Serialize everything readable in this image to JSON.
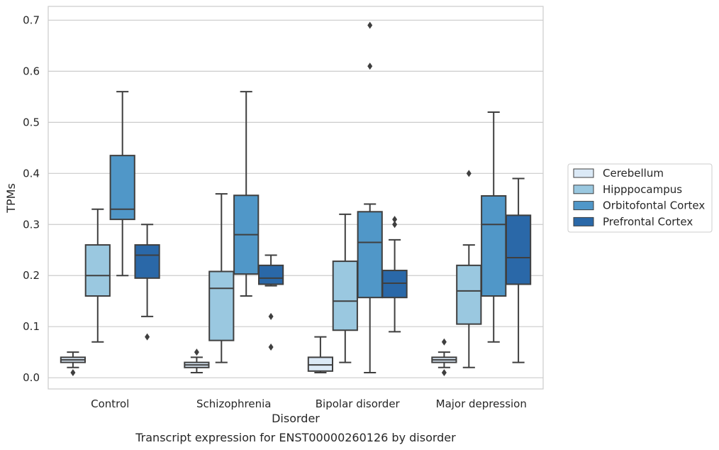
{
  "caption": "Transcript expression for ENST00000260126 by disorder",
  "chart_data": {
    "type": "box",
    "xlabel": "Disorder",
    "ylabel": "TPMs",
    "ylim": [
      -0.022,
      0.727
    ],
    "yticks": [
      "0.0",
      "0.1",
      "0.2",
      "0.3",
      "0.4",
      "0.5",
      "0.6",
      "0.7"
    ],
    "grid": "horizontal",
    "legend_position": "right",
    "categories": [
      "Control",
      "Schizophrenia",
      "Bipolar disorder",
      "Major depression"
    ],
    "series": [
      {
        "name": "Cerebellum",
        "color": "#dbe9f6",
        "boxes": [
          {
            "whislo": 0.02,
            "q1": 0.03,
            "med": 0.035,
            "q3": 0.04,
            "whishi": 0.05,
            "fliers": [
              0.01
            ]
          },
          {
            "whislo": 0.01,
            "q1": 0.02,
            "med": 0.025,
            "q3": 0.03,
            "whishi": 0.04,
            "fliers": [
              0.05
            ]
          },
          {
            "whislo": 0.01,
            "q1": 0.013,
            "med": 0.025,
            "q3": 0.04,
            "whishi": 0.08,
            "fliers": []
          },
          {
            "whislo": 0.02,
            "q1": 0.03,
            "med": 0.035,
            "q3": 0.04,
            "whishi": 0.05,
            "fliers": [
              0.01,
              0.07
            ]
          }
        ]
      },
      {
        "name": "Hipppocampus",
        "color": "#9ac8e0",
        "boxes": [
          {
            "whislo": 0.07,
            "q1": 0.16,
            "med": 0.2,
            "q3": 0.26,
            "whishi": 0.33,
            "fliers": []
          },
          {
            "whislo": 0.03,
            "q1": 0.073,
            "med": 0.175,
            "q3": 0.208,
            "whishi": 0.36,
            "fliers": []
          },
          {
            "whislo": 0.03,
            "q1": 0.093,
            "med": 0.15,
            "q3": 0.228,
            "whishi": 0.32,
            "fliers": []
          },
          {
            "whislo": 0.02,
            "q1": 0.105,
            "med": 0.17,
            "q3": 0.22,
            "whishi": 0.26,
            "fliers": [
              0.4
            ]
          }
        ]
      },
      {
        "name": "Orbitofontal Cortex",
        "color": "#5097c8",
        "boxes": [
          {
            "whislo": 0.2,
            "q1": 0.31,
            "med": 0.33,
            "q3": 0.435,
            "whishi": 0.56,
            "fliers": []
          },
          {
            "whislo": 0.16,
            "q1": 0.203,
            "med": 0.28,
            "q3": 0.357,
            "whishi": 0.56,
            "fliers": []
          },
          {
            "whislo": 0.01,
            "q1": 0.157,
            "med": 0.265,
            "q3": 0.325,
            "whishi": 0.34,
            "fliers": [
              0.61,
              0.69
            ]
          },
          {
            "whislo": 0.07,
            "q1": 0.16,
            "med": 0.3,
            "q3": 0.356,
            "whishi": 0.52,
            "fliers": []
          }
        ]
      },
      {
        "name": "Prefrontal Cortex",
        "color": "#2a68a8",
        "boxes": [
          {
            "whislo": 0.12,
            "q1": 0.195,
            "med": 0.24,
            "q3": 0.26,
            "whishi": 0.3,
            "fliers": [
              0.08
            ]
          },
          {
            "whislo": 0.18,
            "q1": 0.183,
            "med": 0.195,
            "q3": 0.22,
            "whishi": 0.24,
            "fliers": [
              0.06,
              0.12
            ]
          },
          {
            "whislo": 0.09,
            "q1": 0.157,
            "med": 0.185,
            "q3": 0.21,
            "whishi": 0.27,
            "fliers": [
              0.3,
              0.31
            ]
          },
          {
            "whislo": 0.03,
            "q1": 0.183,
            "med": 0.235,
            "q3": 0.318,
            "whishi": 0.39,
            "fliers": []
          }
        ]
      }
    ]
  }
}
